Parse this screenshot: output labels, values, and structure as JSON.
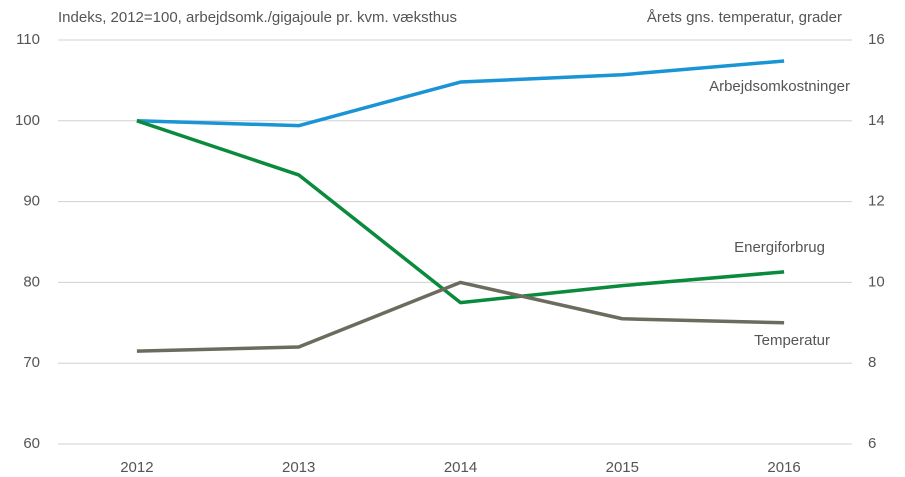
{
  "chart_data": {
    "type": "line",
    "ylabel": "Indeks, 2012=100,  arbejdsomk./gigajoule pr. kvm. væksthus",
    "y2label": "Årets gns. temperatur, grader",
    "categories": [
      "2012",
      "2013",
      "2014",
      "2015",
      "2016"
    ],
    "series": [
      {
        "name": "Arbejdsomkostninger",
        "color": "#1a94d4",
        "values": [
          100,
          99.4,
          104.8,
          105.7,
          107.4
        ]
      },
      {
        "name": "Energiforbrug",
        "color": "#0a8a3c",
        "values": [
          100,
          93.3,
          77.5,
          79.6,
          81.3
        ]
      },
      {
        "name": "Temperatur",
        "color": "#6b6b5e",
        "axis": "y2",
        "values": [
          8.3,
          8.4,
          10.0,
          9.1,
          9.0
        ]
      }
    ],
    "ylim": [
      60,
      110
    ],
    "yticks": [
      60,
      70,
      80,
      90,
      100,
      110
    ],
    "y2lim": [
      6,
      16
    ],
    "y2ticks": [
      6,
      8,
      10,
      12,
      14,
      16
    ],
    "grid": true
  }
}
